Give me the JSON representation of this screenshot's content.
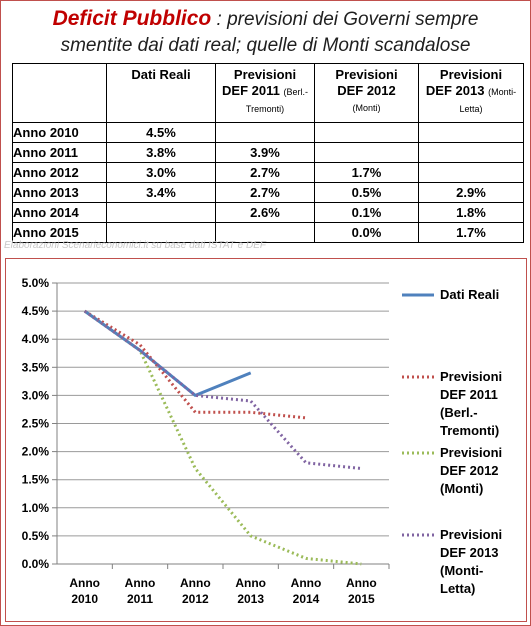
{
  "header": {
    "title_bold": "Deficit Pubblico",
    "title_rest": ": previsioni dei Governi sempre",
    "title_line2": "smentite dai dati real; quelle di Monti scandalose"
  },
  "table": {
    "columns": [
      {
        "main": "Dati Reali",
        "sub": ""
      },
      {
        "main": "Previsioni DEF 2011",
        "sub": "(Berl.-Tremonti)"
      },
      {
        "main": "Previsioni DEF 2012",
        "sub": "(Monti)"
      },
      {
        "main": "Previsioni DEF 2013",
        "sub": "(Monti-Letta)"
      }
    ],
    "rows": [
      {
        "label": "Anno 2010",
        "cells": [
          "4.5%",
          "",
          "",
          ""
        ]
      },
      {
        "label": "Anno 2011",
        "cells": [
          "3.8%",
          "3.9%",
          "",
          ""
        ]
      },
      {
        "label": "Anno 2012",
        "cells": [
          "3.0%",
          "2.7%",
          "1.7%",
          ""
        ]
      },
      {
        "label": "Anno 2013",
        "cells": [
          "3.4%",
          "2.7%",
          "0.5%",
          "2.9%"
        ]
      },
      {
        "label": "Anno 2014",
        "cells": [
          "",
          "2.6%",
          "0.1%",
          "1.8%"
        ]
      },
      {
        "label": "Anno 2015",
        "cells": [
          "",
          "",
          "0.0%",
          "1.7%"
        ]
      }
    ],
    "source": "Elaborazioni Scenarieconomici.it su base dati ISTAT e DEF"
  },
  "chart_data": {
    "type": "line",
    "categories": [
      "Anno 2010",
      "Anno 2011",
      "Anno 2012",
      "Anno 2013",
      "Anno 2014",
      "Anno 2015"
    ],
    "yticks": [
      "0.0%",
      "0.5%",
      "1.0%",
      "1.5%",
      "2.0%",
      "2.5%",
      "3.0%",
      "3.5%",
      "4.0%",
      "4.5%",
      "5.0%"
    ],
    "ylim": [
      0,
      5.0
    ],
    "grid": true,
    "legend_position": "right",
    "series": [
      {
        "name": "Dati Reali",
        "values": [
          4.5,
          3.8,
          3.0,
          3.4,
          null,
          null
        ],
        "color": "#4f81bd",
        "style": "solid"
      },
      {
        "name": "Previsioni DEF 2011 (Berl.-Tremonti)",
        "values": [
          4.5,
          3.9,
          2.7,
          2.7,
          2.6,
          null
        ],
        "color": "#c0504d",
        "style": "dotted"
      },
      {
        "name": "Previsioni DEF 2012 (Monti)",
        "values": [
          4.5,
          3.8,
          1.7,
          0.5,
          0.1,
          0.0
        ],
        "color": "#9bbb59",
        "style": "dotted"
      },
      {
        "name": "Previsioni DEF 2013 (Monti-Letta)",
        "values": [
          4.5,
          3.8,
          3.0,
          2.9,
          1.8,
          1.7
        ],
        "color": "#8064a2",
        "style": "dotted"
      }
    ]
  }
}
